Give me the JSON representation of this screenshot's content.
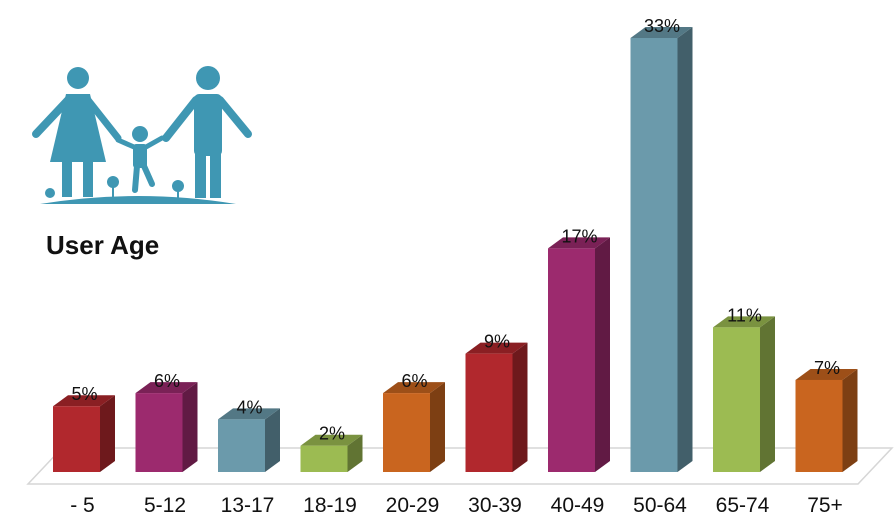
{
  "chart_data": {
    "type": "bar",
    "title": "User Age",
    "categories": [
      "- 5",
      "5-12",
      "13-17",
      "18-19",
      "20-29",
      "30-39",
      "40-49",
      "50-64",
      "65-74",
      "75+"
    ],
    "values": [
      5,
      6,
      4,
      2,
      6,
      9,
      17,
      33,
      11,
      7
    ],
    "value_labels": [
      "5%",
      "6%",
      "4%",
      "2%",
      "6%",
      "9%",
      "17%",
      "33%",
      "11%",
      "7%"
    ],
    "unit": "%",
    "ylim": [
      0,
      33
    ],
    "grid": false,
    "legend": "none",
    "colors": [
      "#b1282d",
      "#9c2a6e",
      "#6b9aab",
      "#9cbb52",
      "#c9651f",
      "#b1282d",
      "#9c2a6e",
      "#6b9aab",
      "#9cbb52",
      "#c9651f"
    ],
    "icon": "family-icon",
    "icon_color": "#3f97b3"
  }
}
